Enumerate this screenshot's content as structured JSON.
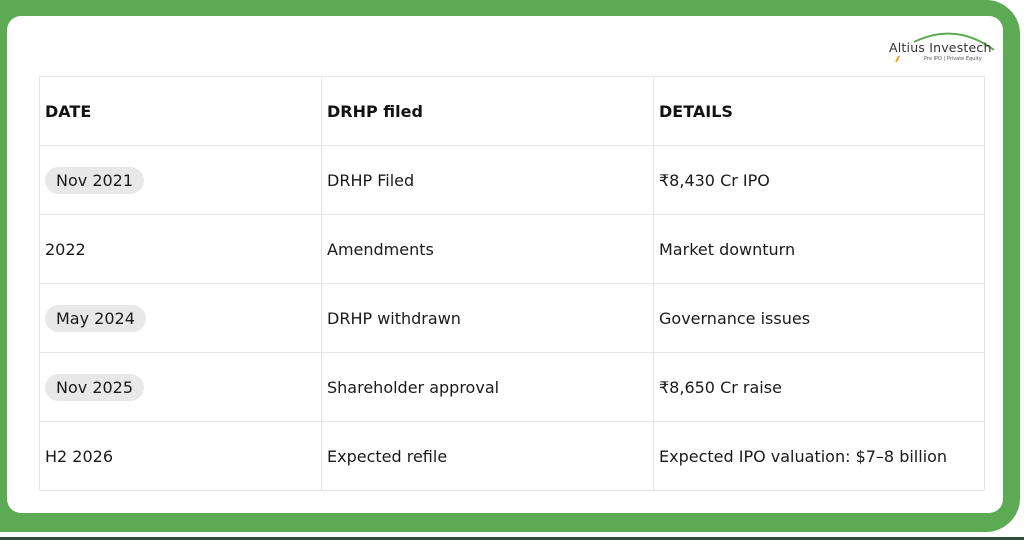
{
  "logo": {
    "name": "Altius Investech",
    "tagline": "Pre IPO | Private Equity",
    "accent": "#5cab54"
  },
  "colors": {
    "frame": "#5cab54",
    "pill": "#e8e8e8"
  },
  "table": {
    "headers": [
      "DATE",
      "DRHP filed",
      "DETAILS"
    ],
    "rows": [
      {
        "date": "Nov 2021",
        "date_pill": true,
        "event": "DRHP Filed",
        "details": "₹8,430 Cr IPO"
      },
      {
        "date": "2022",
        "date_pill": false,
        "event": "Amendments",
        "details": "Market downturn"
      },
      {
        "date": "May 2024",
        "date_pill": true,
        "event": "DRHP withdrawn",
        "details": "Governance issues"
      },
      {
        "date": "Nov 2025",
        "date_pill": true,
        "event": "Shareholder approval",
        "details": "₹8,650 Cr raise"
      },
      {
        "date": "H2 2026",
        "date_pill": false,
        "event": "Expected refile",
        "details": "Expected IPO valuation: $7–8 billion"
      }
    ]
  }
}
